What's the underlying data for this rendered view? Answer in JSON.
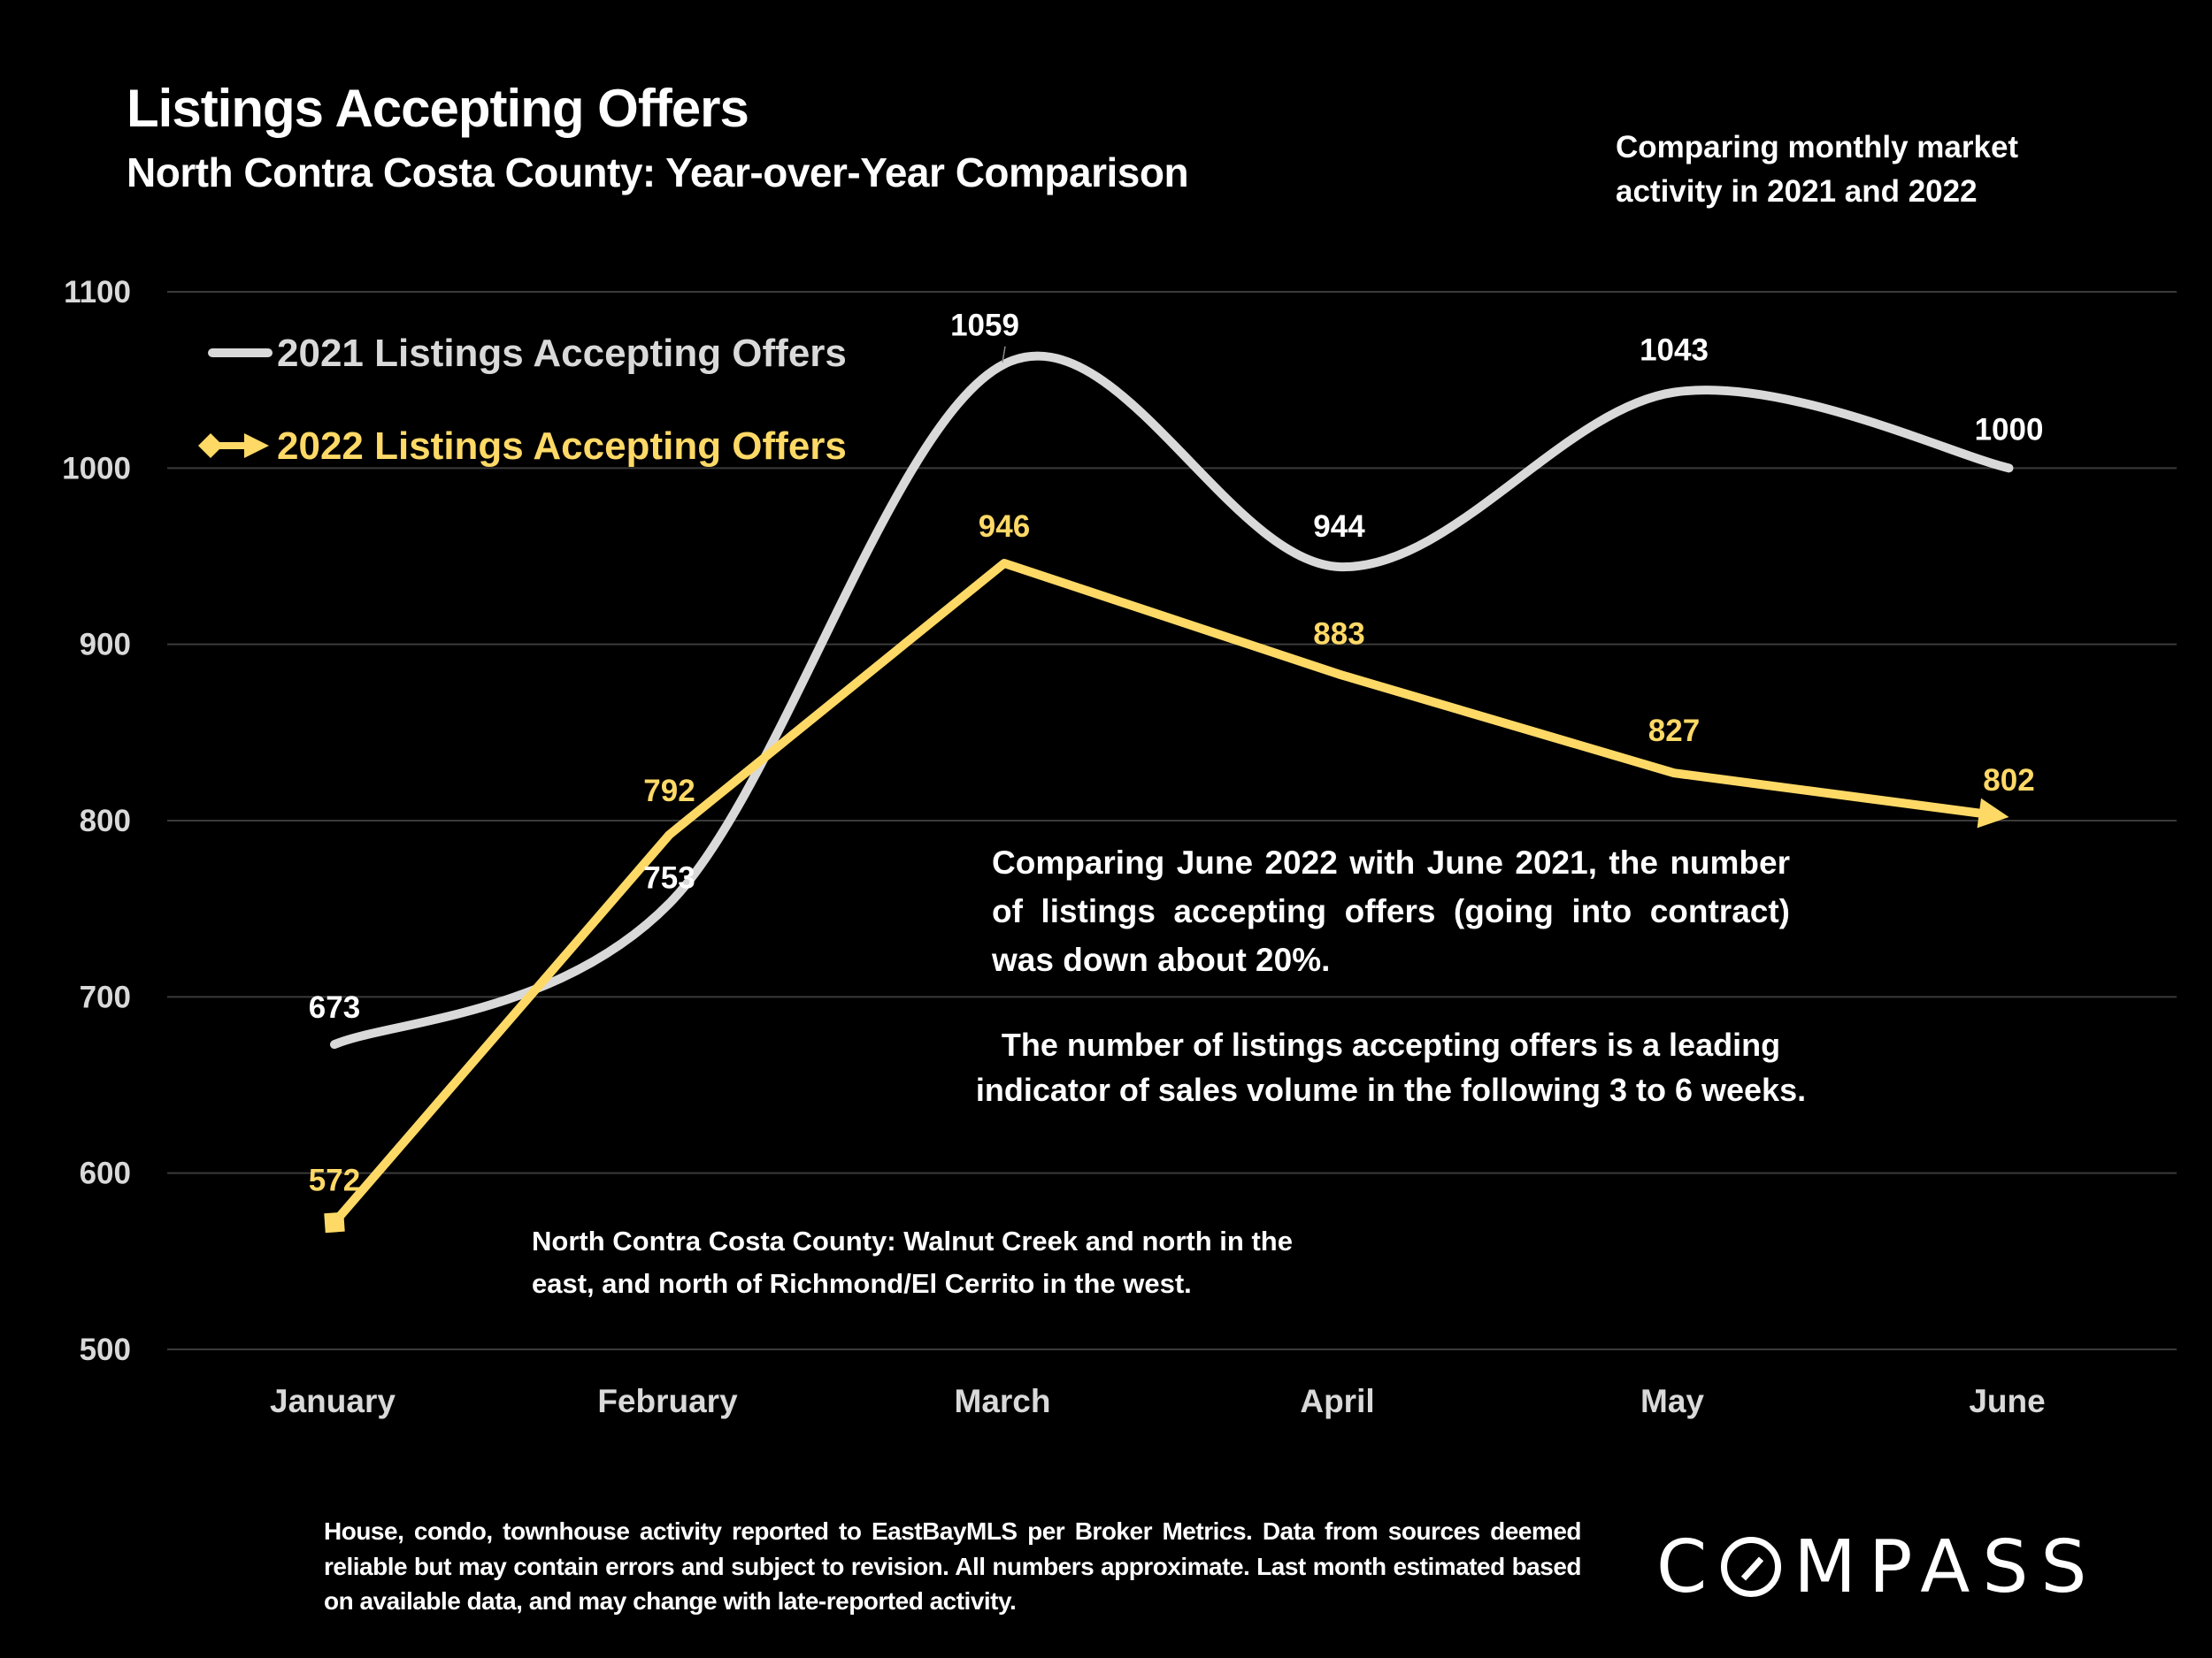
{
  "header": {
    "title": "Listings Accepting Offers",
    "subtitle": "North Contra Costa County: Year-over-Year Comparison",
    "side_note": "Comparing monthly market activity in 2021 and 2022"
  },
  "annotations": {
    "comparison": "Comparing June 2022 with June 2021, the number of listings accepting offers (going into contract) was down about 20%.",
    "leading_indicator": "The number of listings accepting offers is a leading indicator of sales volume in the following 3 to 6 weeks.",
    "county_definition": "North Contra Costa County: Walnut Creek and north in the east, and north of Richmond/El Cerrito in the west."
  },
  "footer": {
    "disclaimer": "House, condo, townhouse activity reported to EastBayMLS per Broker Metrics. Data from sources deemed reliable but may contain errors and subject to revision. All numbers approximate. Last month estimated based on available data, and may change with late-reported activity.",
    "logo": "COMPASS"
  },
  "colors": {
    "background": "#000000",
    "series_2021": "#d9d9d9",
    "series_2022": "#ffd966",
    "gridline": "#3a3a3a"
  },
  "chart_data": {
    "type": "line",
    "title": "Listings Accepting Offers",
    "subtitle": "North Contra Costa County: Year-over-Year Comparison",
    "xlabel": "",
    "ylabel": "",
    "categories": [
      "January",
      "February",
      "March",
      "April",
      "May",
      "June"
    ],
    "ylim": [
      500,
      1100
    ],
    "yticks": [
      500,
      600,
      700,
      800,
      900,
      1000,
      1100
    ],
    "grid": true,
    "legend": "top-left",
    "series": [
      {
        "name": "2021 Listings Accepting Offers",
        "values": [
          673,
          753,
          1059,
          944,
          1043,
          1000
        ],
        "color": "#d9d9d9",
        "smooth": true,
        "marker": "none"
      },
      {
        "name": "2022 Listings Accepting Offers",
        "values": [
          572,
          792,
          946,
          883,
          827,
          802
        ],
        "color": "#ffd966",
        "smooth": false,
        "marker": "square-start-arrow-end"
      }
    ]
  }
}
